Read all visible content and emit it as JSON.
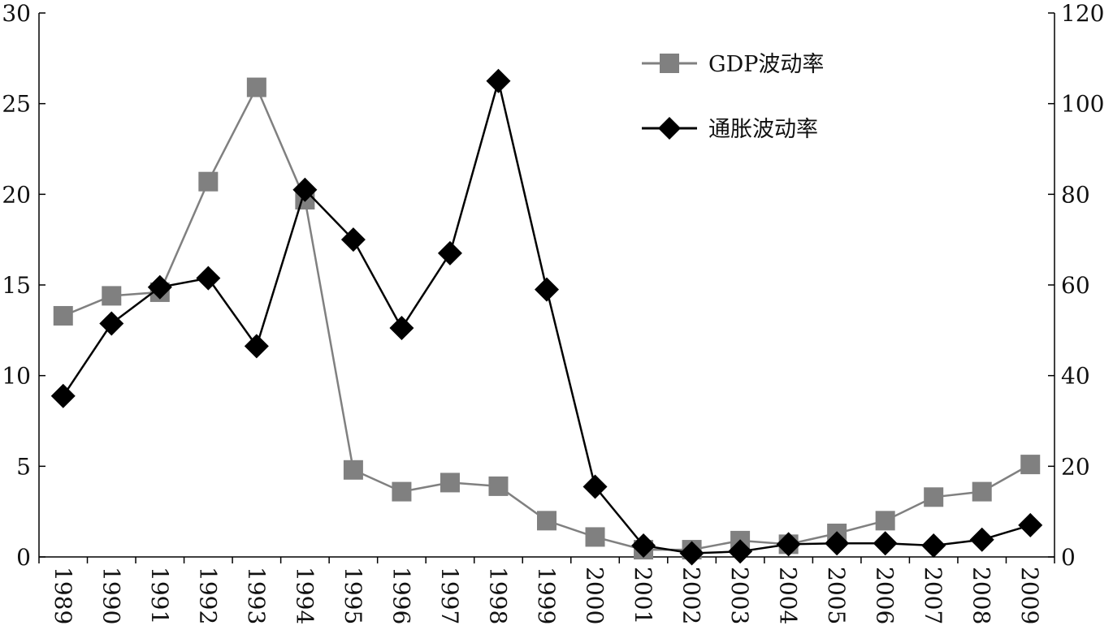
{
  "chart_data": {
    "type": "line",
    "x": [
      "1989",
      "1990",
      "1991",
      "1992",
      "1993",
      "1994",
      "1995",
      "1996",
      "1997",
      "1998",
      "1999",
      "2000",
      "2001",
      "2002",
      "2003",
      "2004",
      "2005",
      "2006",
      "2007",
      "2008",
      "2009"
    ],
    "series": [
      {
        "name": "GDP波动率",
        "axis": "left",
        "marker": "square",
        "color": "#808080",
        "values": [
          13.3,
          14.4,
          14.6,
          20.7,
          25.9,
          19.7,
          4.8,
          3.6,
          4.1,
          3.9,
          2.0,
          1.1,
          0.4,
          0.4,
          0.9,
          0.7,
          1.3,
          2.0,
          3.3,
          3.6,
          5.1
        ]
      },
      {
        "name": "通胀波动率",
        "axis": "right",
        "marker": "diamond",
        "color": "#000000",
        "values": [
          35.5,
          51.5,
          59.5,
          61.5,
          46.5,
          81.0,
          70.0,
          50.5,
          67.0,
          105.0,
          59.0,
          15.5,
          2.5,
          0.8,
          1.2,
          2.8,
          3.0,
          3.0,
          2.5,
          3.8,
          7.0
        ]
      }
    ],
    "y_left": {
      "ylim": [
        0,
        30
      ],
      "ticks": [
        "0",
        "5",
        "10",
        "15",
        "20",
        "25",
        "30"
      ]
    },
    "y_right": {
      "ylim": [
        0,
        120
      ],
      "ticks": [
        "0",
        "20",
        "40",
        "60",
        "80",
        "100",
        "120"
      ]
    },
    "grid": false,
    "legend_position": "top-center"
  }
}
